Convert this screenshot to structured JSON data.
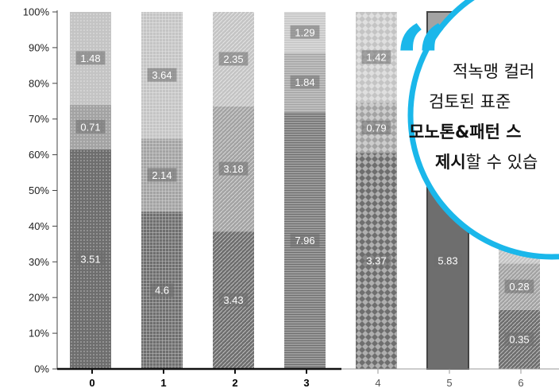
{
  "chart_data": {
    "type": "bar",
    "stacked": true,
    "percent_stacked": true,
    "categories": [
      "0",
      "1",
      "2",
      "3",
      "4",
      "5",
      "6"
    ],
    "emphasized_categories": [
      "0",
      "1",
      "2",
      "3"
    ],
    "y_ticks": [
      "0%",
      "10%",
      "20%",
      "30%",
      "40%",
      "50%",
      "60%",
      "70%",
      "80%",
      "90%",
      "100%"
    ],
    "ylim": [
      0,
      100
    ],
    "grid": false,
    "bars": [
      {
        "category": "0",
        "segments": [
          {
            "pct": 61.5,
            "label": "3.51",
            "fill": "#6e6e6e",
            "pattern": "dots"
          },
          {
            "pct": 12.5,
            "label": "0.71",
            "fill": "#a3a3a3",
            "pattern": "dots"
          },
          {
            "pct": 26.0,
            "label": "1.48",
            "fill": "#c4c4c4",
            "pattern": "dots"
          }
        ]
      },
      {
        "category": "1",
        "segments": [
          {
            "pct": 44.0,
            "label": "4.6",
            "fill": "#6e6e6e",
            "pattern": "grid"
          },
          {
            "pct": 20.5,
            "label": "2.14",
            "fill": "#a3a3a3",
            "pattern": "grid"
          },
          {
            "pct": 35.5,
            "label": "3.64",
            "fill": "#c4c4c4",
            "pattern": "grid"
          }
        ]
      },
      {
        "category": "2",
        "segments": [
          {
            "pct": 38.5,
            "label": "3.43",
            "fill": "#6e6e6e",
            "pattern": "diagonal"
          },
          {
            "pct": 35.0,
            "label": "3.18",
            "fill": "#a3a3a3",
            "pattern": "diagonal"
          },
          {
            "pct": 26.5,
            "label": "2.35",
            "fill": "#c4c4c4",
            "pattern": "diagonal"
          }
        ]
      },
      {
        "category": "3",
        "segments": [
          {
            "pct": 72.0,
            "label": "7.96",
            "fill": "#6e6e6e",
            "pattern": "horizontal"
          },
          {
            "pct": 16.5,
            "label": "1.84",
            "fill": "#a3a3a3",
            "pattern": "horizontal"
          },
          {
            "pct": 11.5,
            "label": "1.29",
            "fill": "#c4c4c4",
            "pattern": "horizontal"
          }
        ]
      },
      {
        "category": "4",
        "segments": [
          {
            "pct": 60.5,
            "label": "3.37",
            "fill": "#6e6e6e",
            "pattern": "diamond"
          },
          {
            "pct": 14.0,
            "label": "0.79",
            "fill": "#a3a3a3",
            "pattern": "diamond"
          },
          {
            "pct": 25.5,
            "label": "1.42",
            "fill": "#c4c4c4",
            "pattern": "diamond"
          }
        ]
      },
      {
        "category": "5",
        "segments": [
          {
            "pct": 60.5,
            "label": "5.83",
            "fill": "#6e6e6e",
            "pattern": "none"
          },
          {
            "pct": 39.5,
            "label": "",
            "fill": "#a3a3a3",
            "pattern": "none"
          }
        ]
      },
      {
        "category": "6",
        "segments": [
          {
            "pct": 16.5,
            "label": "0.35",
            "fill": "#6e6e6e",
            "pattern": "diagonal"
          },
          {
            "pct": 13.0,
            "label": "0.28",
            "fill": "#a3a3a3",
            "pattern": "diagonal"
          },
          {
            "pct": 70.5,
            "label": "",
            "fill": "#c4c4c4",
            "pattern": "diagonal"
          }
        ]
      }
    ]
  },
  "callout": {
    "border_color": "#1ab7ea",
    "quote_color": "#1ab7ea",
    "line1": "적녹맹 컬러",
    "line2": "검토된 표준",
    "line3": "모노톤&패턴 스",
    "line4_bold": "제시",
    "line4_rest": "할 수 있습"
  }
}
